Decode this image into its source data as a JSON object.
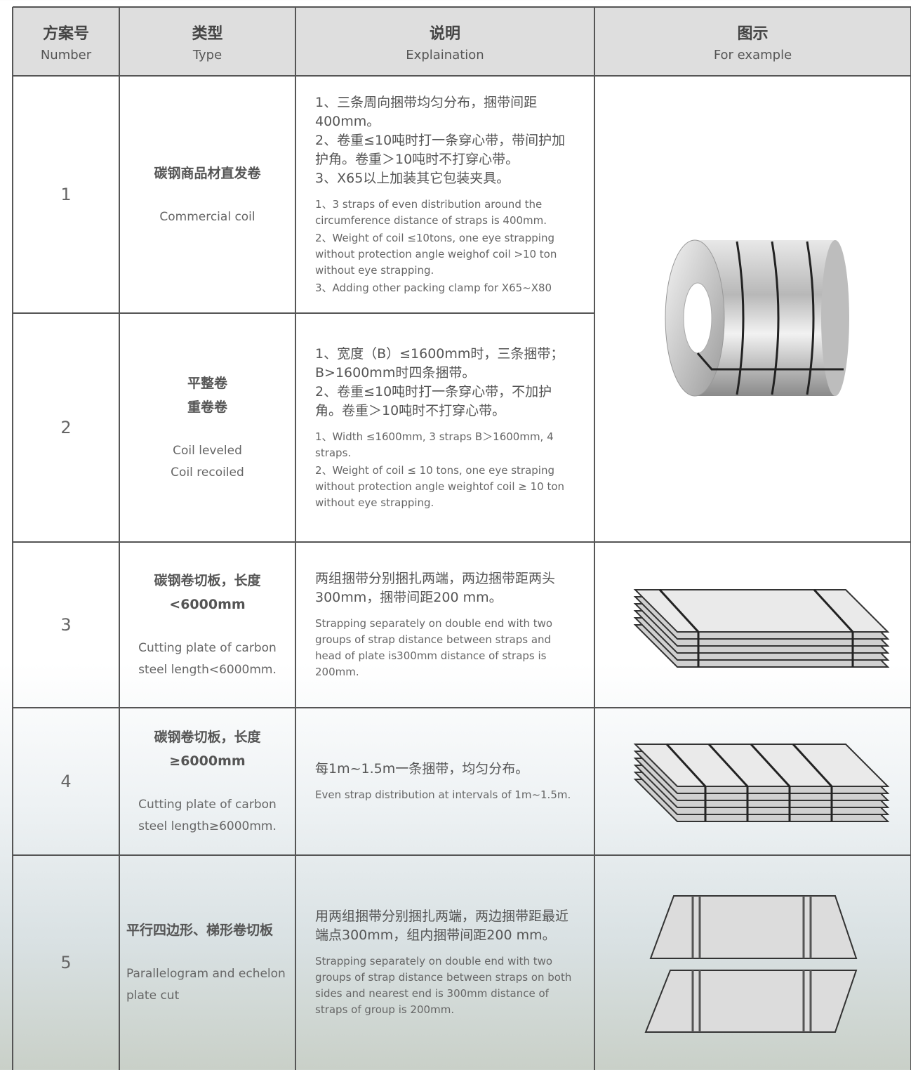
{
  "header": {
    "columns": [
      {
        "zh": "方案号",
        "en": "Number"
      },
      {
        "zh": "类型",
        "en": "Type"
      },
      {
        "zh": "说明",
        "en": "Explaination"
      },
      {
        "zh": "图示",
        "en": "For example"
      }
    ]
  },
  "rows": [
    {
      "number": "1",
      "type_zh": [
        "碳钢商品材直发卷"
      ],
      "type_en": [
        "Commercial coil"
      ],
      "explain_zh": [
        "1、三条周向捆带均匀分布，捆带间距400mm。",
        "2、卷重≤10吨时打一条穿心带，带间护加护角。卷重＞10吨时不打穿心带。",
        "3、X65以上加装其它包装夹具。"
      ],
      "explain_en": [
        "1、3 straps of even distribution around the circumference distance of straps is 400mm.",
        "2、Weight of coil ≤10tons, one eye strapping without protection angle weighof coil >10 ton without eye strapping.",
        "3、Adding other packing clamp for X65~X80"
      ]
    },
    {
      "number": "2",
      "type_zh": [
        "平整卷",
        "重卷卷"
      ],
      "type_en": [
        "Coil leveled",
        "Coil recoiled"
      ],
      "explain_zh": [
        "1、宽度（B）≤1600mm时，三条捆带；B>1600mm时四条捆带。",
        "2、卷重≤10吨时打一条穿心带，不加护角。卷重＞10吨时不打穿心带。"
      ],
      "explain_en": [
        "1、Width ≤1600mm, 3 straps B＞1600mm, 4 straps.",
        "2、Weight of coil ≤ 10 tons, one eye straping without protection angle weightof coil ≥ 10 ton without eye strapping."
      ]
    },
    {
      "number": "3",
      "type_zh": [
        "碳钢卷切板，长度<6000mm"
      ],
      "type_en": [
        "Cutting plate of carbon steel length<6000mm."
      ],
      "explain_zh": [
        "两组捆带分别捆扎两端，两边捆带距两头300mm，捆带间距200 mm。"
      ],
      "explain_en": [
        "Strapping separately on double end with two groups of strap distance between straps and head of plate is300mm distance of straps is 200mm."
      ]
    },
    {
      "number": "4",
      "type_zh": [
        "碳钢卷切板，长度≥6000mm"
      ],
      "type_en": [
        "Cutting plate of carbon steel length≥6000mm."
      ],
      "explain_zh": [
        "每1m~1.5m一条捆带，均匀分布。"
      ],
      "explain_en": [
        "Even strap distribution at intervals of 1m~1.5m."
      ]
    },
    {
      "number": "5",
      "type_zh": [
        "平行四边形、梯形卷切板"
      ],
      "type_en": [
        "Parallelogram and echelon plate cut"
      ],
      "explain_zh": [
        "用两组捆带分别捆扎两端，两边捆带距最近端点300mm，组内捆带间距200 mm。"
      ],
      "explain_en": [
        "Strapping separately on double end with two groups of strap distance between straps on both sides and nearest end is 300mm distance of straps of group is 200mm."
      ]
    }
  ]
}
